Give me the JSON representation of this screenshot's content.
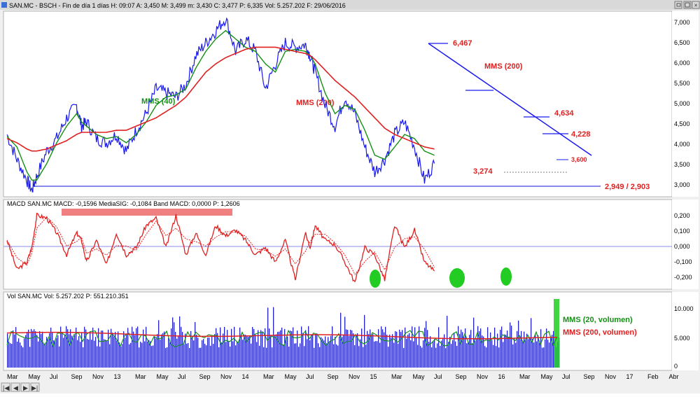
{
  "window": {
    "title": "SAN.MC - BSCH - Fin de día 1 días H: 09:07 A: 3,450 M: 3,499 m: 3,430 C: 3,477 P: 6,335 Vol: 5.257.202 F: 29/06/2016"
  },
  "panels": {
    "macd_title": "MACD  SAN.MC MACD: -0,1596 MediaSIG: -0,1084 Band  MACD: 0,0000 P: 1,2606",
    "vol_title": "Vol  SAN.MC Vol: 5.257.202 P: 551.210.351"
  },
  "colors": {
    "price": "#1a1aee",
    "sma40": "#159015",
    "sma200": "#e02020",
    "macd": "#e02020",
    "volume": "#2020cc",
    "baseline": "#8888ee",
    "highlight": "#f08080",
    "marker": "#22cc22"
  },
  "chart_data": [
    {
      "type": "line",
      "x_ticks": [
        "Mar",
        "May",
        "Jul",
        "Sep",
        "Nov",
        "13",
        "Mar",
        "May",
        "Jul",
        "Sep",
        "Nov",
        "14",
        "Mar",
        "May",
        "Jul",
        "Sep",
        "Nov",
        "15",
        "Mar",
        "May",
        "Jul",
        "Sep",
        "Nov",
        "16",
        "Mar",
        "May",
        "Jul",
        "Sep",
        "Nov",
        "17",
        "Feb",
        "Abr"
      ],
      "y_ticks": [
        "7,000",
        "6,500",
        "6,000",
        "5,500",
        "5,000",
        "4,500",
        "4,000",
        "3,500",
        "3,000"
      ],
      "ylim": [
        2.85,
        7.2
      ],
      "x": [
        0,
        2,
        4,
        5,
        6,
        8,
        10,
        12,
        14,
        15,
        16,
        18,
        20,
        22,
        24,
        26,
        28,
        30,
        32,
        34,
        36,
        38,
        40,
        42,
        44,
        46,
        48,
        50,
        52,
        54,
        56,
        58,
        60,
        61,
        62,
        64,
        66,
        68,
        70,
        72,
        74,
        76,
        78,
        80,
        82,
        84,
        86,
        88,
        90,
        92,
        94,
        96,
        98,
        100,
        102,
        104,
        106,
        108,
        110,
        112
      ],
      "series": [
        {
          "name": "Price",
          "values": [
            4.3,
            3.7,
            3.2,
            2.95,
            3.3,
            3.9,
            4.2,
            4.7,
            5.0,
            4.5,
            4.6,
            4.2,
            4.1,
            4.3,
            3.9,
            4.4,
            4.8,
            5.4,
            5.3,
            5.2,
            5.5,
            6.2,
            6.5,
            6.8,
            7.1,
            6.3,
            6.6,
            6.3,
            5.4,
            6.0,
            6.5,
            6.4,
            6.467,
            6.2,
            5.8,
            5.0,
            4.5,
            5.2,
            4.8,
            4.0,
            3.4,
            3.7,
            4.3,
            4.6,
            4.0,
            3.2,
            3.6,
            null,
            null,
            null,
            null,
            null,
            null,
            null,
            null,
            null,
            null,
            null,
            null,
            null
          ]
        },
        {
          "name": "MMS (40)",
          "values": [
            4.25,
            4.0,
            3.4,
            3.2,
            3.2,
            3.6,
            4.1,
            4.5,
            4.8,
            4.6,
            4.5,
            4.3,
            4.2,
            4.25,
            4.1,
            4.3,
            4.6,
            5.0,
            5.2,
            5.25,
            5.4,
            5.9,
            6.3,
            6.6,
            6.8,
            6.6,
            6.4,
            6.3,
            6.0,
            5.8,
            6.3,
            6.35,
            6.3,
            6.2,
            6.0,
            5.3,
            4.8,
            5.0,
            4.9,
            4.4,
            3.8,
            3.7,
            4.0,
            4.3,
            4.2,
            3.9,
            3.8,
            null,
            null,
            null,
            null,
            null,
            null,
            null,
            null,
            null,
            null,
            null,
            null,
            null
          ]
        },
        {
          "name": "MMS (200)",
          "values": [
            4.2,
            4.1,
            3.95,
            3.9,
            3.9,
            3.95,
            4.05,
            4.15,
            4.3,
            4.35,
            4.35,
            4.35,
            4.35,
            4.4,
            4.4,
            4.5,
            4.6,
            4.7,
            4.85,
            5.0,
            5.2,
            5.5,
            5.8,
            6.0,
            6.15,
            6.25,
            6.35,
            6.4,
            6.4,
            6.4,
            6.35,
            6.3,
            6.25,
            6.2,
            6.1,
            5.85,
            5.6,
            5.4,
            5.2,
            4.95,
            4.7,
            4.45,
            4.3,
            4.2,
            4.1,
            4.0,
            3.95,
            null,
            null,
            null,
            null,
            null,
            null,
            null,
            null,
            null,
            null,
            null,
            null,
            null
          ]
        }
      ],
      "annotations": [
        "MMS (40)",
        "MMS (200)",
        "MMS (200)",
        "6,467",
        "4,634",
        "4,228",
        "3,600",
        "3,274",
        "2,949 / 2,903"
      ]
    },
    {
      "type": "line",
      "y_ticks": [
        "0,200",
        "0,100",
        "0,000",
        "-0,100",
        "-0,200"
      ],
      "ylim": [
        -0.27,
        0.26
      ],
      "x": [
        0,
        2,
        4,
        5,
        6,
        8,
        10,
        12,
        14,
        15,
        16,
        18,
        20,
        22,
        24,
        26,
        28,
        30,
        32,
        34,
        36,
        38,
        40,
        42,
        44,
        46,
        48,
        50,
        52,
        54,
        56,
        58,
        60,
        61,
        62,
        64,
        66,
        68,
        70,
        72,
        74,
        76,
        78,
        80,
        82,
        84,
        86,
        88,
        90,
        92,
        94,
        96,
        98,
        100,
        102,
        104,
        106,
        108,
        110,
        112
      ],
      "series": [
        {
          "name": "MACD",
          "values": [
            0.05,
            -0.15,
            -0.1,
            0.0,
            0.22,
            0.2,
            0.1,
            -0.05,
            0.1,
            0.05,
            -0.1,
            0.05,
            -0.12,
            0.1,
            -0.05,
            0.0,
            0.15,
            0.2,
            0.0,
            0.22,
            -0.05,
            0.1,
            -0.05,
            0.15,
            0.08,
            0.12,
            0.05,
            -0.05,
            0.0,
            -0.1,
            0.05,
            -0.22,
            0.1,
            0.0,
            0.15,
            0.05,
            0.02,
            -0.1,
            -0.24,
            0.0,
            -0.05,
            -0.22,
            0.15,
            0.0,
            0.12,
            -0.1,
            -0.16,
            null,
            null,
            null,
            null,
            null,
            null,
            null,
            null,
            null,
            null,
            null,
            null,
            null
          ]
        }
      ]
    },
    {
      "type": "bar",
      "y_ticks": [
        "10.000",
        "5.000",
        "0"
      ],
      "ylim": [
        0,
        12000
      ],
      "annotations": [
        "MMS (20, volumen)",
        "MMS (200, volumen)"
      ]
    }
  ]
}
